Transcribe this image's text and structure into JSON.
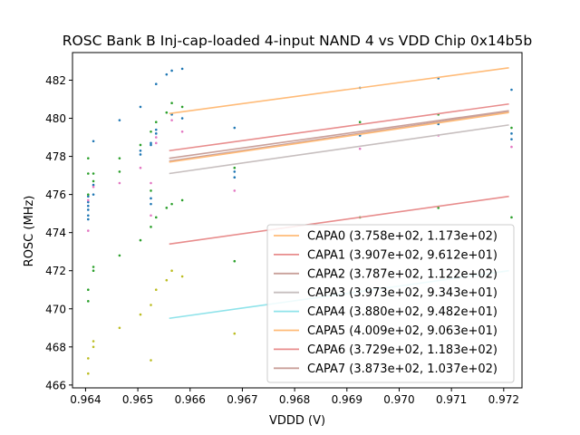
{
  "chart_data": {
    "type": "scatter",
    "title": "ROSC Bank B Inj-cap-loaded 4-input NAND 4 vs VDD Chip 0x14b5b",
    "xlabel": "VDDD (V)",
    "ylabel": "ROSC (MHz)",
    "xlim": [
      0.96375,
      0.97235
    ],
    "ylim": [
      465.85,
      483.45
    ],
    "xticks": [
      "0.964",
      "0.965",
      "0.966",
      "0.967",
      "0.968",
      "0.969",
      "0.970",
      "0.971",
      "0.972"
    ],
    "xtick_values": [
      0.964,
      0.965,
      0.966,
      0.967,
      0.968,
      0.969,
      0.97,
      0.971,
      0.972
    ],
    "yticks": [
      "466",
      "468",
      "470",
      "472",
      "474",
      "476",
      "478",
      "480",
      "482"
    ],
    "ytick_values": [
      466,
      468,
      470,
      472,
      474,
      476,
      478,
      480,
      482
    ],
    "grid": false,
    "legend_position": "lower right",
    "fit_range": [
      0.9656,
      0.9721
    ],
    "series": [
      {
        "name": "CAPA0",
        "label": "CAPA0 (3.758e+02, 1.173e+02)",
        "color": "#ffbb78",
        "fit": [
          480.25,
          482.65
        ]
      },
      {
        "name": "CAPA1",
        "label": "CAPA1 (3.907e+02, 9.612e+01)",
        "color": "#e88d8d",
        "fit": [
          478.3,
          480.75
        ]
      },
      {
        "name": "CAPA2",
        "label": "CAPA2 (3.787e+02, 1.122e+02)",
        "color": "#c9a09a",
        "fit": [
          477.75,
          480.35
        ]
      },
      {
        "name": "CAPA3",
        "label": "CAPA3 (3.973e+02, 9.343e+01)",
        "color": "#c7bfbf",
        "fit": [
          477.1,
          479.65
        ]
      },
      {
        "name": "CAPA4",
        "label": "CAPA4 (3.880e+02, 9.482e+01)",
        "color": "#8fe3ea",
        "fit": [
          469.5,
          472.0
        ]
      },
      {
        "name": "CAPA5",
        "label": "CAPA5 (4.009e+02, 9.063e+01)",
        "color": "#ffbb78",
        "fit": [
          477.7,
          480.3
        ]
      },
      {
        "name": "CAPA6",
        "label": "CAPA6 (3.729e+02, 1.183e+02)",
        "color": "#e88d8d",
        "fit": [
          473.4,
          475.9
        ]
      },
      {
        "name": "CAPA7",
        "label": "CAPA7 (3.873e+02, 1.037e+02)",
        "color": "#c9a09a",
        "fit": [
          477.9,
          480.4
        ]
      }
    ],
    "points": [
      {
        "color": "#1f77b4",
        "xy": [
          [
            0.96405,
            475.9
          ],
          [
            0.96405,
            475.6
          ],
          [
            0.96405,
            475.2
          ],
          [
            0.96405,
            474.9
          ],
          [
            0.96405,
            474.7
          ],
          [
            0.96405,
            475.4
          ],
          [
            0.96415,
            478.8
          ],
          [
            0.96415,
            476.5
          ],
          [
            0.96415,
            476.0
          ],
          [
            0.96465,
            479.9
          ],
          [
            0.96505,
            480.6
          ],
          [
            0.96505,
            478.3
          ],
          [
            0.96505,
            478.1
          ],
          [
            0.96525,
            475.8
          ],
          [
            0.96525,
            475.5
          ],
          [
            0.96525,
            478.6
          ],
          [
            0.96525,
            478.7
          ],
          [
            0.96535,
            481.8
          ],
          [
            0.96555,
            482.3
          ],
          [
            0.96565,
            482.5
          ],
          [
            0.96585,
            482.6
          ],
          [
            0.96535,
            479.4
          ],
          [
            0.96535,
            479.2
          ],
          [
            0.96565,
            480.2
          ],
          [
            0.96585,
            480.0
          ],
          [
            0.96685,
            477.2
          ],
          [
            0.96685,
            476.9
          ],
          [
            0.96685,
            479.5
          ],
          [
            0.96925,
            481.6
          ],
          [
            0.96925,
            479.1
          ],
          [
            0.97075,
            482.1
          ],
          [
            0.97075,
            479.7
          ],
          [
            0.97215,
            481.5
          ],
          [
            0.97215,
            479.2
          ],
          [
            0.97215,
            478.9
          ]
        ]
      },
      {
        "color": "#2ca02c",
        "xy": [
          [
            0.96405,
            477.9
          ],
          [
            0.96405,
            477.1
          ],
          [
            0.96405,
            476.0
          ],
          [
            0.96405,
            471.0
          ],
          [
            0.96405,
            470.4
          ],
          [
            0.96415,
            472.2
          ],
          [
            0.96415,
            472.0
          ],
          [
            0.96415,
            477.1
          ],
          [
            0.96415,
            476.7
          ],
          [
            0.96465,
            477.9
          ],
          [
            0.96465,
            477.2
          ],
          [
            0.96465,
            472.8
          ],
          [
            0.96505,
            478.6
          ],
          [
            0.96505,
            473.6
          ],
          [
            0.96525,
            476.2
          ],
          [
            0.96525,
            479.3
          ],
          [
            0.96525,
            474.3
          ],
          [
            0.96535,
            474.8
          ],
          [
            0.96535,
            479.8
          ],
          [
            0.96555,
            480.3
          ],
          [
            0.96555,
            475.3
          ],
          [
            0.96565,
            480.8
          ],
          [
            0.96565,
            475.5
          ],
          [
            0.96585,
            480.6
          ],
          [
            0.96585,
            475.7
          ],
          [
            0.96685,
            477.4
          ],
          [
            0.96685,
            472.5
          ],
          [
            0.96925,
            479.8
          ],
          [
            0.96925,
            474.8
          ],
          [
            0.97075,
            480.2
          ],
          [
            0.97075,
            475.3
          ],
          [
            0.97215,
            479.5
          ],
          [
            0.97215,
            474.8
          ]
        ]
      },
      {
        "color": "#e377c2",
        "xy": [
          [
            0.96405,
            474.1
          ],
          [
            0.96405,
            475.7
          ],
          [
            0.96415,
            476.4
          ],
          [
            0.96465,
            476.6
          ],
          [
            0.96505,
            477.4
          ],
          [
            0.96525,
            476.6
          ],
          [
            0.96525,
            474.9
          ],
          [
            0.96535,
            478.7
          ],
          [
            0.96535,
            479.0
          ],
          [
            0.96565,
            479.9
          ],
          [
            0.96585,
            479.3
          ],
          [
            0.96685,
            476.2
          ],
          [
            0.96925,
            478.4
          ],
          [
            0.97075,
            479.1
          ],
          [
            0.97215,
            478.5
          ]
        ]
      },
      {
        "color": "#bcbd22",
        "xy": [
          [
            0.96405,
            466.6
          ],
          [
            0.96405,
            467.4
          ],
          [
            0.96415,
            468.3
          ],
          [
            0.96415,
            468.0
          ],
          [
            0.96465,
            469.0
          ],
          [
            0.96505,
            469.7
          ],
          [
            0.96525,
            467.3
          ],
          [
            0.96525,
            470.2
          ],
          [
            0.96535,
            471.0
          ],
          [
            0.96555,
            471.5
          ],
          [
            0.96565,
            472.0
          ],
          [
            0.96585,
            471.7
          ],
          [
            0.96685,
            468.7
          ]
        ]
      }
    ]
  }
}
